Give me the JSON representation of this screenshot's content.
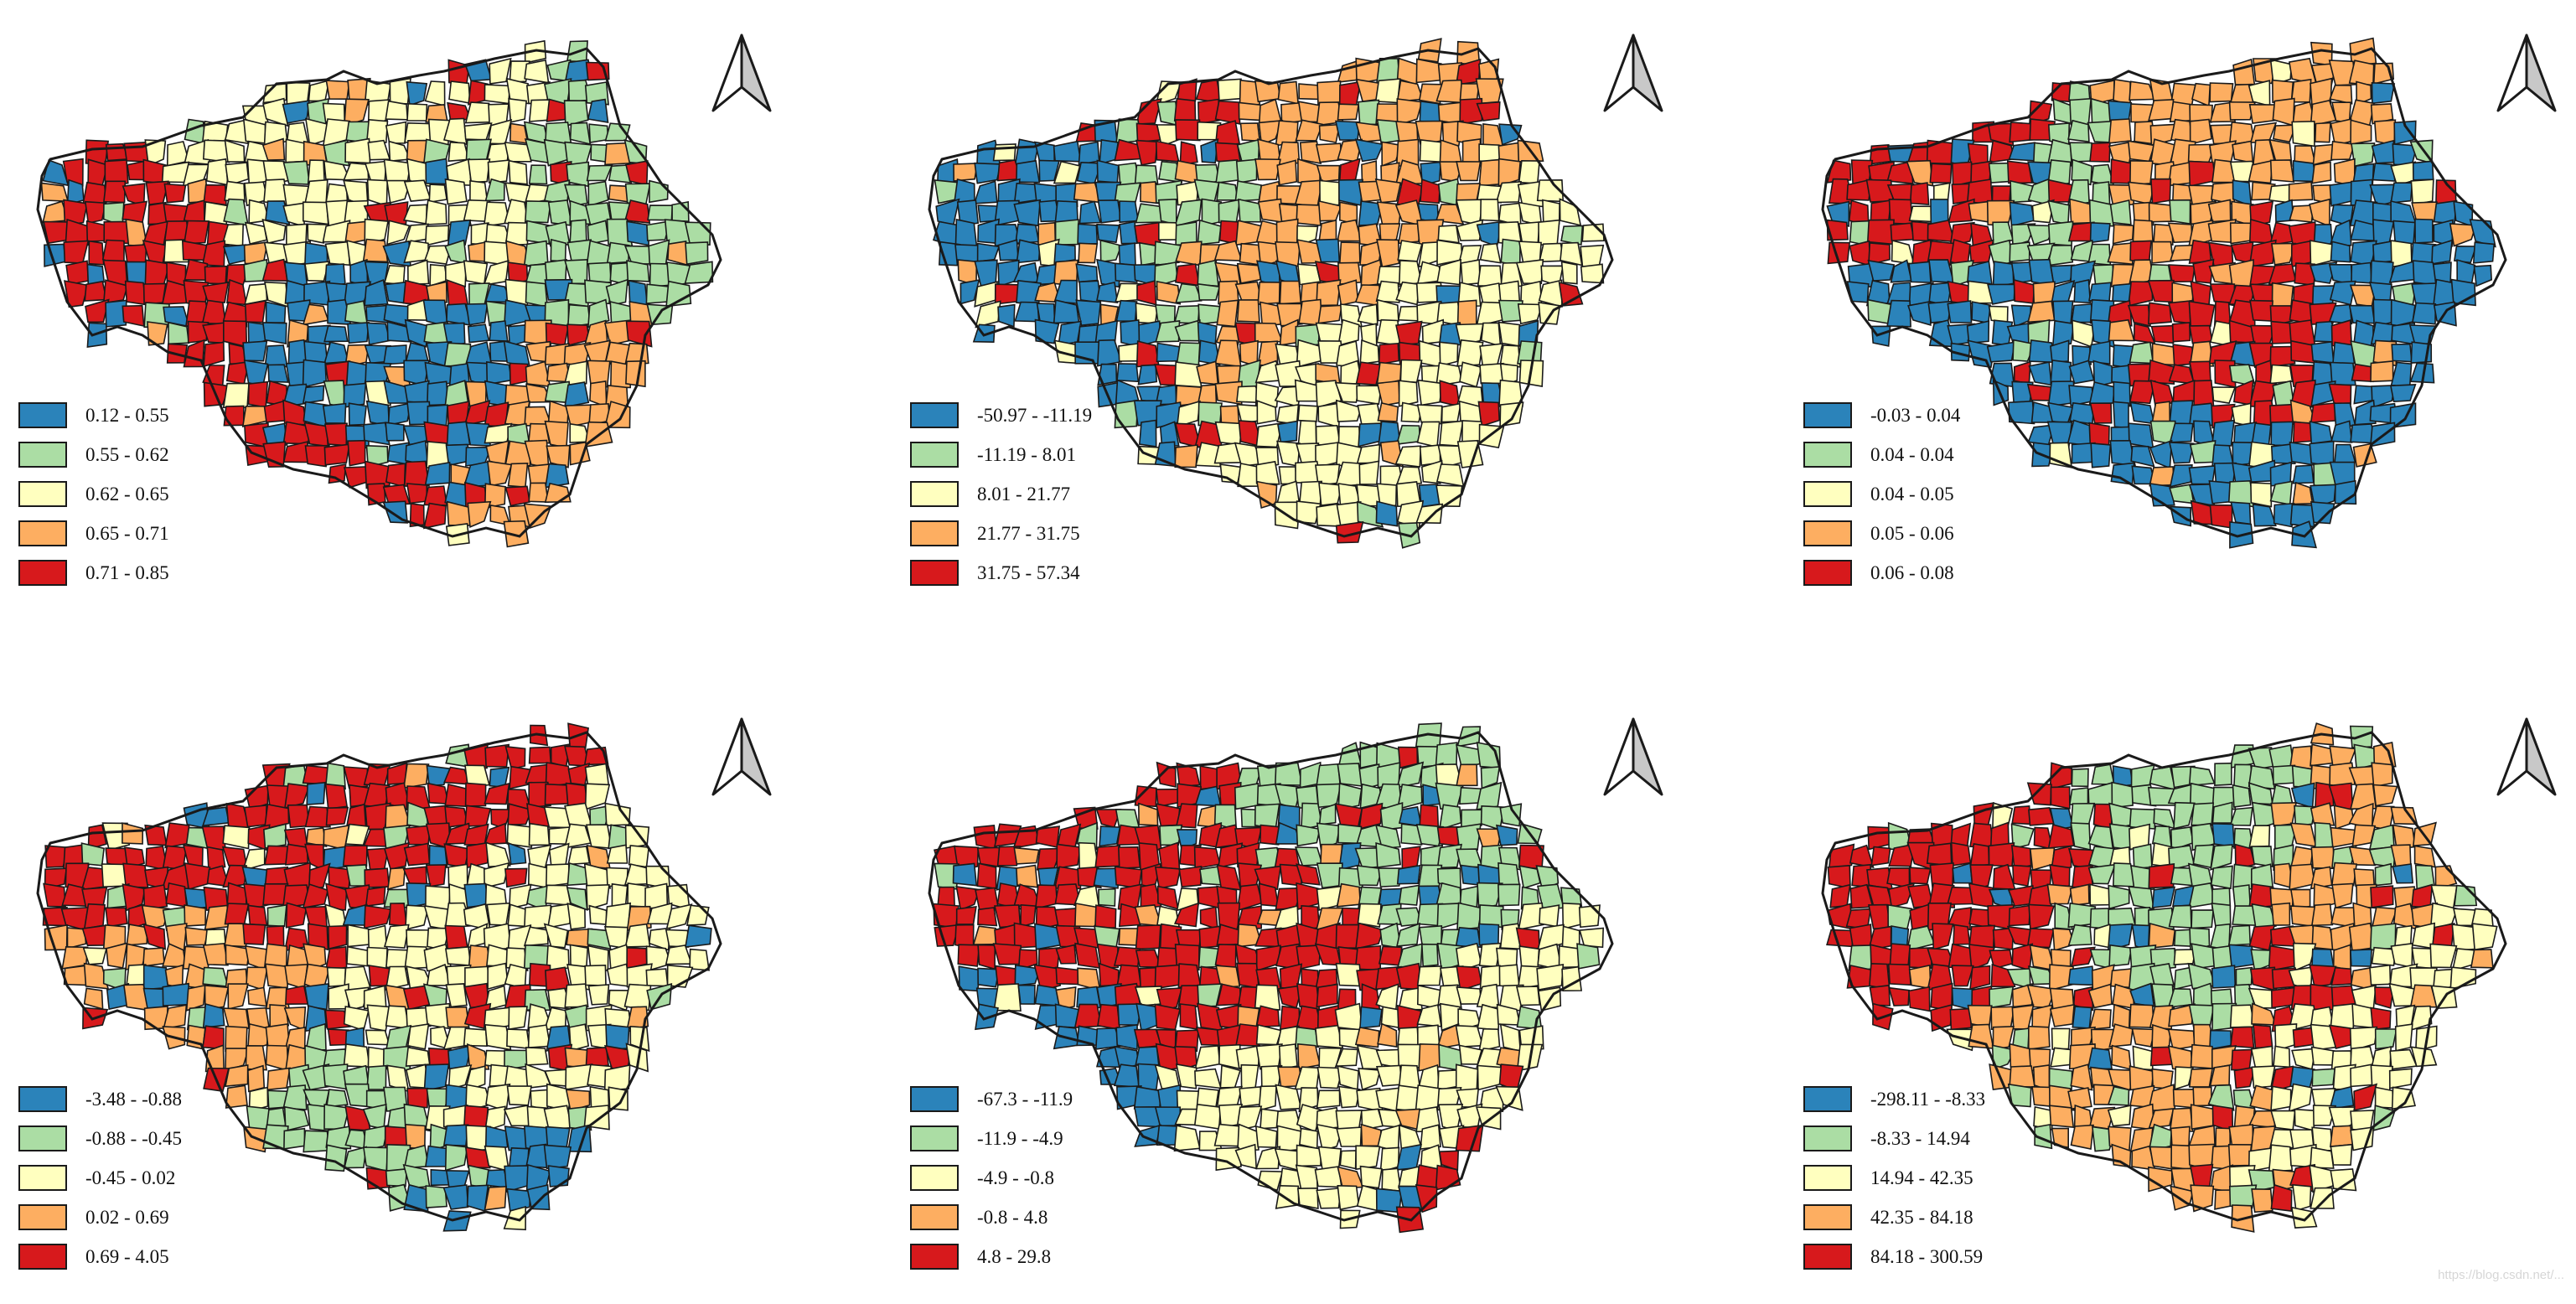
{
  "colors": {
    "class1": "#2b83ba",
    "class2": "#abdda4",
    "class3": "#ffffbf",
    "class4": "#fdae61",
    "class5": "#d7191c",
    "boundary": "#1a1a1a"
  },
  "icons": {
    "north": "north-arrow-icon"
  },
  "watermark": "https://blog.csdn.net/...",
  "panels": [
    {
      "legend": [
        "0.12 - 0.55",
        "0.55 - 0.62",
        "0.62 - 0.65",
        "0.65 - 0.71",
        "0.71 - 0.85"
      ]
    },
    {
      "legend": [
        "-50.97 - -11.19",
        "-11.19 - 8.01",
        "8.01 - 21.77",
        "21.77 - 31.75",
        "31.75 - 57.34"
      ]
    },
    {
      "legend": [
        "-0.03 - 0.04",
        "0.04 - 0.04",
        "0.04 - 0.05",
        "0.05 - 0.06",
        "0.06 - 0.08"
      ]
    },
    {
      "legend": [
        "-3.48 - -0.88",
        "-0.88 - -0.45",
        "-0.45 - 0.02",
        "0.02 - 0.69",
        "0.69 - 4.05"
      ]
    },
    {
      "legend": [
        "-67.3 - -11.9",
        "-11.9 - -4.9",
        "-4.9 - -0.8",
        "-0.8 - 4.8",
        "4.8 - 29.8"
      ]
    },
    {
      "legend": [
        "-298.11 - -8.33",
        "-8.33 - 14.94",
        "14.94 - 42.35",
        "42.35 - 84.18",
        "84.18 - 300.59"
      ]
    }
  ]
}
